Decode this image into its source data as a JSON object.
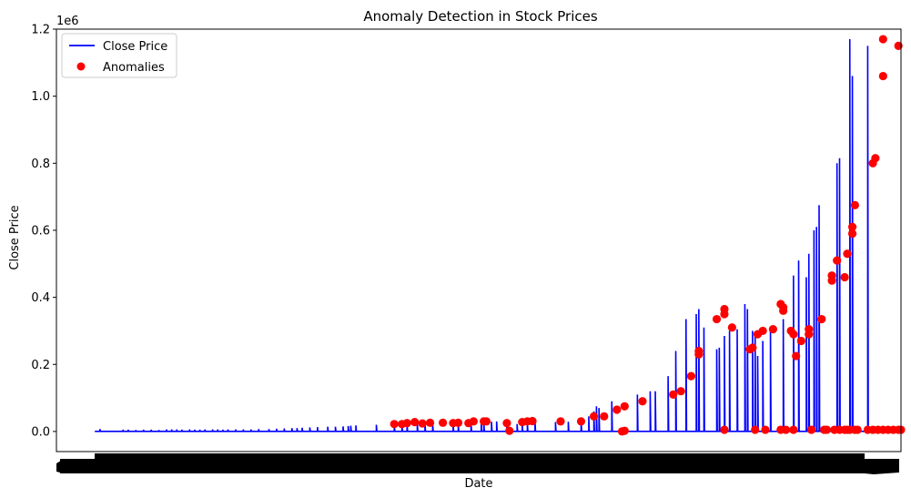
{
  "chart_data": {
    "type": "line",
    "title": "Anomaly Detection in Stock Prices",
    "xlabel": "Date",
    "ylabel": "Close Price",
    "y_offset_label": "1e6",
    "y_scale": 1000000,
    "ylim": [
      -60000,
      1200000
    ],
    "yticks": [
      0.0,
      0.2,
      0.4,
      0.6,
      0.8,
      1.0,
      1.2
    ],
    "ytick_labels": [
      "0.0",
      "0.2",
      "0.4",
      "0.6",
      "0.8",
      "1.0",
      "1.2"
    ],
    "x_axis_note": "x tick labels are dates overlapping into an unreadable black band",
    "xlim": [
      -15,
      315
    ],
    "grid": false,
    "legend": {
      "placement": "top-left",
      "entries": [
        {
          "label": "Close Price",
          "marker": "line",
          "color": "#0000ff"
        },
        {
          "label": "Anomalies",
          "marker": "dot",
          "color": "#ff0000"
        }
      ]
    },
    "colors": {
      "line": "#0000ff",
      "anomaly": "#ff0000",
      "anomaly_edge": "#a00000"
    },
    "series": [
      {
        "name": "Close Price",
        "baseline": 300,
        "spikes": [
          [
            2,
            7000
          ],
          [
            11,
            5000
          ],
          [
            13,
            5000
          ],
          [
            16,
            4000
          ],
          [
            19,
            5000
          ],
          [
            22,
            5000
          ],
          [
            25,
            4000
          ],
          [
            28,
            6000
          ],
          [
            30,
            6000
          ],
          [
            32,
            6000
          ],
          [
            34,
            5000
          ],
          [
            37,
            6000
          ],
          [
            39,
            5000
          ],
          [
            41,
            5000
          ],
          [
            43,
            6000
          ],
          [
            46,
            6000
          ],
          [
            48,
            6000
          ],
          [
            50,
            5000
          ],
          [
            52,
            6000
          ],
          [
            55,
            6000
          ],
          [
            58,
            6000
          ],
          [
            61,
            6000
          ],
          [
            64,
            7000
          ],
          [
            68,
            7000
          ],
          [
            71,
            8000
          ],
          [
            74,
            9000
          ],
          [
            77,
            10000
          ],
          [
            79,
            10000
          ],
          [
            81,
            11000
          ],
          [
            84,
            12000
          ],
          [
            87,
            13000
          ],
          [
            91,
            14000
          ],
          [
            94,
            14000
          ],
          [
            97,
            15000
          ],
          [
            99,
            16000
          ],
          [
            100,
            17000
          ],
          [
            102,
            18000
          ],
          [
            110,
            20000
          ],
          [
            117,
            22000
          ],
          [
            120,
            23000
          ],
          [
            122,
            24000
          ],
          [
            126,
            25000
          ],
          [
            129,
            26000
          ],
          [
            132,
            25000
          ],
          [
            140,
            24000
          ],
          [
            142,
            25000
          ],
          [
            147,
            26000
          ],
          [
            151,
            27000
          ],
          [
            152,
            28000
          ],
          [
            155,
            29000
          ],
          [
            157,
            30000
          ],
          [
            161,
            31000
          ],
          [
            165,
            22000
          ],
          [
            167,
            25000
          ],
          [
            169,
            26000
          ],
          [
            172,
            29000
          ],
          [
            180,
            28000
          ],
          [
            185,
            29000
          ],
          [
            190,
            40000
          ],
          [
            193,
            45000
          ],
          [
            195,
            60000
          ],
          [
            196,
            75000
          ],
          [
            197,
            70000
          ],
          [
            202,
            90000
          ],
          [
            212,
            110000
          ],
          [
            217,
            120000
          ],
          [
            219,
            120000
          ],
          [
            224,
            165000
          ],
          [
            227,
            240000
          ],
          [
            231,
            335000
          ],
          [
            235,
            350000
          ],
          [
            236,
            365000
          ],
          [
            238,
            310000
          ],
          [
            243,
            245000
          ],
          [
            244,
            250000
          ],
          [
            246,
            285000
          ],
          [
            248,
            300000
          ],
          [
            251,
            305000
          ],
          [
            254,
            380000
          ],
          [
            255,
            365000
          ],
          [
            257,
            300000
          ],
          [
            258,
            290000
          ],
          [
            259,
            225000
          ],
          [
            261,
            270000
          ],
          [
            264,
            305000
          ],
          [
            269,
            335000
          ],
          [
            273,
            465000
          ],
          [
            275,
            510000
          ],
          [
            278,
            460000
          ],
          [
            279,
            530000
          ],
          [
            281,
            600000
          ],
          [
            282,
            610000
          ],
          [
            283,
            675000
          ],
          [
            290,
            800000
          ],
          [
            291,
            815000
          ],
          [
            295,
            1170000
          ],
          [
            296,
            1060000
          ],
          [
            302,
            1150000
          ]
        ]
      },
      {
        "name": "Anomalies",
        "points": [
          [
            117,
            22000
          ],
          [
            120,
            22000
          ],
          [
            122,
            25000
          ],
          [
            125,
            28000
          ],
          [
            128,
            24000
          ],
          [
            131,
            26000
          ],
          [
            136,
            26000
          ],
          [
            140,
            25000
          ],
          [
            142,
            26000
          ],
          [
            146,
            25000
          ],
          [
            148,
            30000
          ],
          [
            152,
            30000
          ],
          [
            153,
            30000
          ],
          [
            161,
            25000
          ],
          [
            167,
            28000
          ],
          [
            169,
            30000
          ],
          [
            171,
            31000
          ],
          [
            182,
            30000
          ],
          [
            190,
            30000
          ],
          [
            195,
            45000
          ],
          [
            199,
            45000
          ],
          [
            204,
            65000
          ],
          [
            207,
            75000
          ],
          [
            206,
            0
          ],
          [
            214,
            90000
          ],
          [
            226,
            110000
          ],
          [
            229,
            120000
          ],
          [
            233,
            165000
          ],
          [
            236,
            240000
          ],
          [
            236,
            230000
          ],
          [
            243,
            335000
          ],
          [
            246,
            350000
          ],
          [
            246,
            365000
          ],
          [
            249,
            310000
          ],
          [
            256,
            245000
          ],
          [
            257,
            250000
          ],
          [
            259,
            290000
          ],
          [
            261,
            300000
          ],
          [
            265,
            305000
          ],
          [
            268,
            380000
          ],
          [
            269,
            370000
          ],
          [
            269,
            360000
          ],
          [
            272,
            300000
          ],
          [
            273,
            290000
          ],
          [
            274,
            225000
          ],
          [
            276,
            270000
          ],
          [
            279,
            305000
          ],
          [
            279,
            290000
          ],
          [
            284,
            335000
          ],
          [
            288,
            465000
          ],
          [
            288,
            450000
          ],
          [
            290,
            510000
          ],
          [
            293,
            460000
          ],
          [
            294,
            530000
          ],
          [
            296,
            590000
          ],
          [
            296,
            610000
          ],
          [
            297,
            675000
          ],
          [
            304,
            800000
          ],
          [
            305,
            815000
          ],
          [
            308,
            1170000
          ],
          [
            308,
            1060000
          ],
          [
            314,
            1150000
          ],
          [
            246,
            5000
          ],
          [
            258,
            5000
          ],
          [
            262,
            5000
          ],
          [
            268,
            5000
          ],
          [
            270,
            5000
          ],
          [
            273,
            5000
          ],
          [
            280,
            5000
          ],
          [
            285,
            5000
          ],
          [
            286,
            5000
          ],
          [
            289,
            5000
          ],
          [
            291,
            5000
          ],
          [
            293,
            5000
          ],
          [
            294,
            5000
          ],
          [
            295,
            5000
          ],
          [
            297,
            5000
          ],
          [
            298,
            5000
          ],
          [
            302,
            5000
          ],
          [
            304,
            5000
          ],
          [
            306,
            5000
          ],
          [
            308,
            5000
          ],
          [
            310,
            5000
          ],
          [
            312,
            5000
          ],
          [
            314,
            5000
          ],
          [
            315,
            5000
          ],
          [
            162,
            2000
          ],
          [
            207,
            2000
          ]
        ]
      }
    ]
  }
}
